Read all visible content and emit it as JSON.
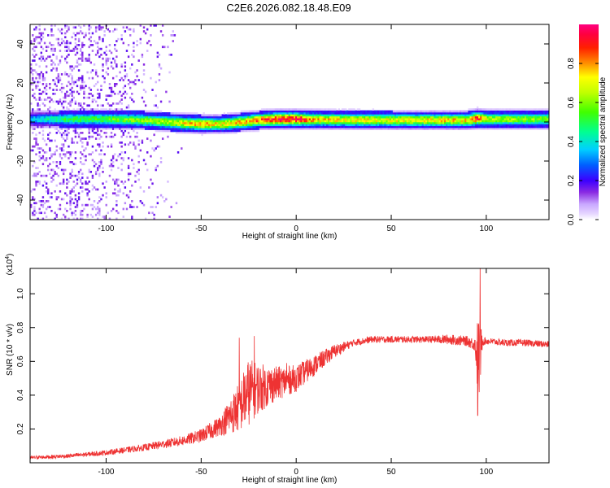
{
  "title": "C2E6.2026.082.18.48.E09",
  "chart_data": [
    {
      "type": "heatmap",
      "title": "C2E6.2026.082.18.48.E09",
      "xlabel": "Height of straight line (km)",
      "ylabel": "Frequency (Hz)",
      "xlim": [
        -140,
        133
      ],
      "ylim": [
        -50,
        50
      ],
      "xticks": [
        -100,
        -50,
        0,
        50,
        100
      ],
      "yticks": [
        -40,
        -20,
        0,
        20,
        40
      ],
      "colorbar": {
        "label": "Normalized spectral amplitude",
        "range": [
          0,
          1
        ],
        "ticks": [
          "0.0",
          "0.2",
          "0.4",
          "0.6",
          "0.8"
        ],
        "colors": [
          "#ffffff",
          "#c8a6ff",
          "#8a2be2",
          "#5a00ff",
          "#0000ff",
          "#0080ff",
          "#00e0ff",
          "#00ff80",
          "#40ff00",
          "#c0ff00",
          "#ffff00",
          "#ffa000",
          "#ff4000",
          "#ff0000",
          "#ff0080"
        ]
      },
      "ridge": {
        "description_points_km": [
          -140,
          -120,
          -100,
          -80,
          -60,
          -50,
          -40,
          -30,
          -20,
          -10,
          0,
          10,
          50,
          90,
          95,
          100,
          133
        ],
        "center_hz": [
          1,
          1,
          1,
          0.5,
          -1,
          -1.5,
          -1.5,
          -0.5,
          0.5,
          1,
          1,
          0.8,
          0.5,
          0.5,
          1.5,
          1,
          1
        ],
        "peak_amplitude": [
          0.35,
          0.5,
          0.55,
          0.6,
          0.7,
          0.8,
          0.7,
          0.75,
          0.85,
          0.95,
          0.95,
          0.75,
          0.7,
          0.75,
          0.9,
          0.65,
          0.6
        ]
      }
    },
    {
      "type": "line",
      "xlabel": "Height of straight line (km)",
      "ylabel": "SNR (10 * v/v)",
      "y_multiplier_label": "(x10",
      "y_multiplier_exp": "4",
      "xlim": [
        -140,
        133
      ],
      "ylim": [
        0,
        1.15
      ],
      "xticks": [
        -100,
        -50,
        0,
        50,
        100
      ],
      "yticks": [
        0.2,
        0.4,
        0.6,
        0.8,
        1.0
      ],
      "ytick_labels": [
        "0.2",
        "0.4",
        "0.6",
        "0.8",
        "1.0"
      ],
      "series": [
        {
          "name": "SNR",
          "color": "#ee3333",
          "x": [
            -140,
            -120,
            -100,
            -80,
            -60,
            -50,
            -40,
            -30,
            -25,
            -20,
            -10,
            0,
            10,
            20,
            30,
            40,
            50,
            60,
            70,
            80,
            90,
            94,
            96,
            98,
            100,
            110,
            120,
            133
          ],
          "y": [
            0.03,
            0.04,
            0.06,
            0.09,
            0.13,
            0.16,
            0.22,
            0.33,
            0.42,
            0.44,
            0.47,
            0.5,
            0.58,
            0.66,
            0.71,
            0.73,
            0.73,
            0.73,
            0.73,
            0.73,
            0.72,
            0.7,
            0.6,
            0.72,
            0.72,
            0.71,
            0.71,
            0.7
          ],
          "noise": [
            0.01,
            0.012,
            0.015,
            0.02,
            0.03,
            0.04,
            0.06,
            0.15,
            0.2,
            0.15,
            0.1,
            0.08,
            0.06,
            0.04,
            0.02,
            0.02,
            0.02,
            0.02,
            0.02,
            0.03,
            0.03,
            0.04,
            0.3,
            0.03,
            0.02,
            0.02,
            0.02,
            0.02
          ],
          "spikes": [
            {
              "x": -30,
              "y": 0.74
            },
            {
              "x": -22,
              "y": 0.75
            },
            {
              "x": -5,
              "y": 0.59
            },
            {
              "x": 95.5,
              "y": 0.28
            },
            {
              "x": 96.8,
              "y": 1.18
            }
          ]
        }
      ]
    }
  ]
}
